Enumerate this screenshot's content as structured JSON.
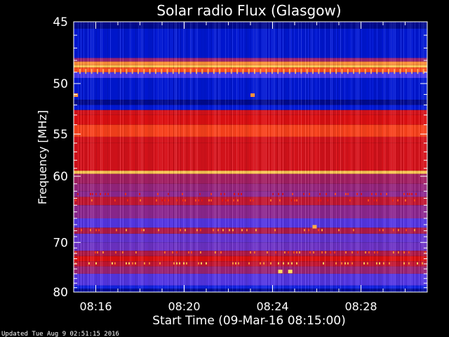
{
  "chart_data": {
    "type": "heatmap",
    "title": "Solar radio Flux (Glasgow)",
    "xlabel": "Start Time (09-Mar-16 08:15:00)",
    "ylabel": "Frequency [MHz]",
    "xlim": [
      0,
      16
    ],
    "ylim": [
      45,
      80
    ],
    "x_unit": "minutes after 08:15:00",
    "y_scale": "reciprocal",
    "x_ticks": [
      {
        "value": 1,
        "label": "08:16"
      },
      {
        "value": 5,
        "label": "08:20"
      },
      {
        "value": 9,
        "label": "08:24"
      },
      {
        "value": 13,
        "label": "08:28"
      }
    ],
    "y_ticks": [
      {
        "value": 45,
        "label": "45"
      },
      {
        "value": 50,
        "label": "50"
      },
      {
        "value": 55,
        "label": "55"
      },
      {
        "value": 60,
        "label": "60"
      },
      {
        "value": 70,
        "label": "70"
      },
      {
        "value": 80,
        "label": "80"
      }
    ],
    "colormap": [
      "#000060",
      "#0018d8",
      "#3a3aff",
      "#7a30b8",
      "#b01a48",
      "#e01010",
      "#ff5020",
      "#ffa040",
      "#ffe060"
    ],
    "bands": [
      {
        "f0": 45.0,
        "f1": 45.5,
        "level": 0.05
      },
      {
        "f0": 45.5,
        "f1": 47.8,
        "level": 0.12
      },
      {
        "f0": 47.8,
        "f1": 48.1,
        "level": 0.45
      },
      {
        "f0": 48.1,
        "f1": 48.4,
        "level": 0.85
      },
      {
        "f0": 48.4,
        "f1": 48.6,
        "level": 0.95
      },
      {
        "f0": 48.6,
        "f1": 49.0,
        "level": 0.75
      },
      {
        "f0": 49.0,
        "f1": 49.5,
        "level": 0.28
      },
      {
        "f0": 49.5,
        "f1": 51.5,
        "level": 0.12
      },
      {
        "f0": 51.5,
        "f1": 52.0,
        "level": 0.05
      },
      {
        "f0": 52.0,
        "f1": 52.5,
        "level": 0.13
      },
      {
        "f0": 52.5,
        "f1": 53.0,
        "level": 0.6
      },
      {
        "f0": 53.0,
        "f1": 54.0,
        "level": 0.62
      },
      {
        "f0": 54.0,
        "f1": 55.3,
        "level": 0.72
      },
      {
        "f0": 55.3,
        "f1": 56.0,
        "level": 0.6
      },
      {
        "f0": 56.0,
        "f1": 59.3,
        "level": 0.6
      },
      {
        "f0": 59.3,
        "f1": 59.7,
        "level": 0.95
      },
      {
        "f0": 59.7,
        "f1": 61.0,
        "level": 0.47
      },
      {
        "f0": 61.0,
        "f1": 62.0,
        "level": 0.44
      },
      {
        "f0": 62.0,
        "f1": 62.8,
        "level": 0.42
      },
      {
        "f0": 62.8,
        "f1": 64.0,
        "level": 0.55
      },
      {
        "f0": 64.0,
        "f1": 66.0,
        "level": 0.42
      },
      {
        "f0": 66.0,
        "f1": 67.5,
        "level": 0.3
      },
      {
        "f0": 67.5,
        "f1": 68.5,
        "level": 0.5
      },
      {
        "f0": 68.5,
        "f1": 70.0,
        "level": 0.33
      },
      {
        "f0": 70.0,
        "f1": 71.5,
        "level": 0.35
      },
      {
        "f0": 71.5,
        "f1": 72.5,
        "level": 0.5
      },
      {
        "f0": 72.5,
        "f1": 73.5,
        "level": 0.62
      },
      {
        "f0": 73.5,
        "f1": 74.5,
        "level": 0.55
      },
      {
        "f0": 74.5,
        "f1": 76.0,
        "level": 0.45
      },
      {
        "f0": 76.0,
        "f1": 78.5,
        "level": 0.3
      },
      {
        "f0": 78.5,
        "f1": 79.2,
        "level": 0.16
      },
      {
        "f0": 79.2,
        "f1": 80.0,
        "level": 0.06
      }
    ],
    "features": [
      {
        "t": 9.35,
        "f": 75.6,
        "level": 1.0
      },
      {
        "t": 9.8,
        "f": 75.6,
        "level": 1.0
      },
      {
        "t": 10.9,
        "f": 67.4,
        "level": 0.9
      },
      {
        "t": 8.1,
        "f": 51.1,
        "level": 0.85
      },
      {
        "t": 0.1,
        "f": 51.1,
        "level": 0.85
      }
    ]
  },
  "footer": {
    "updated": "Updated Tue Aug  9 02:51:15 2016"
  },
  "colors": {
    "background": "#000000",
    "text": "#ffffff"
  }
}
